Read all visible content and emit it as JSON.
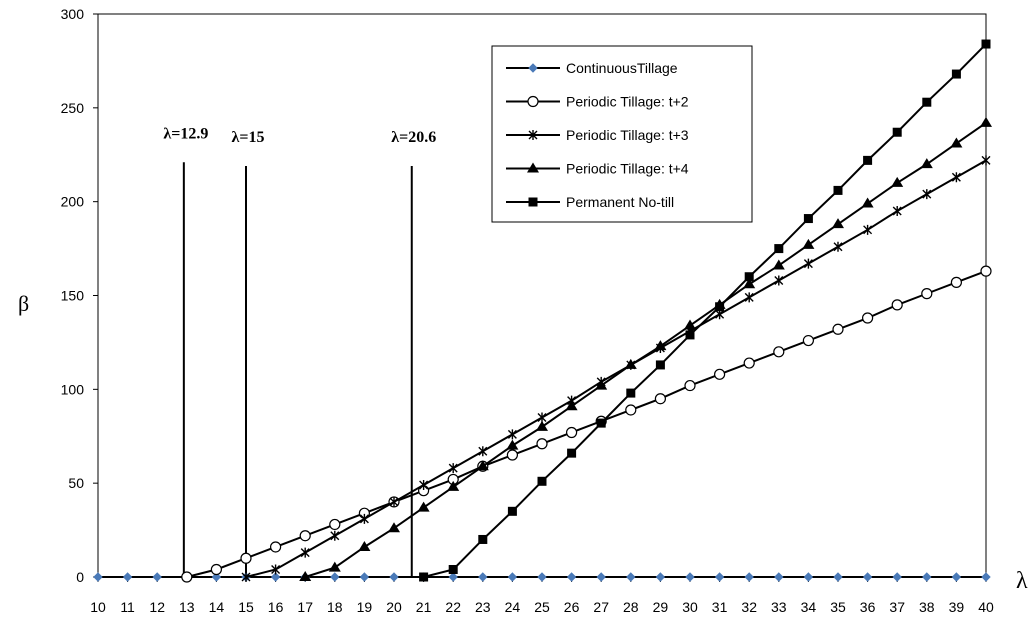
{
  "chart_data": {
    "type": "line",
    "title": "",
    "xlabel": "λ",
    "ylabel": "β",
    "xlim": [
      10,
      40
    ],
    "ylim": [
      0,
      300
    ],
    "x_ticks": [
      10,
      11,
      12,
      13,
      14,
      15,
      16,
      17,
      18,
      19,
      20,
      21,
      22,
      23,
      24,
      25,
      26,
      27,
      28,
      29,
      30,
      31,
      32,
      33,
      34,
      35,
      36,
      37,
      38,
      39,
      40
    ],
    "y_ticks": [
      0,
      50,
      100,
      150,
      200,
      250,
      300
    ],
    "grid": false,
    "legend_position": "top-right",
    "series": [
      {
        "name": "ContinuousTillage",
        "marker": "diamond",
        "color": "#4a7ab8",
        "x": [
          10,
          11,
          12,
          13,
          14,
          15,
          16,
          17,
          18,
          19,
          20,
          21,
          22,
          23,
          24,
          25,
          26,
          27,
          28,
          29,
          30,
          31,
          32,
          33,
          34,
          35,
          36,
          37,
          38,
          39,
          40
        ],
        "y": [
          0,
          0,
          0,
          0,
          0,
          0,
          0,
          0,
          0,
          0,
          0,
          0,
          0,
          0,
          0,
          0,
          0,
          0,
          0,
          0,
          0,
          0,
          0,
          0,
          0,
          0,
          0,
          0,
          0,
          0,
          0
        ]
      },
      {
        "name": "Periodic Tillage: t+2",
        "marker": "circle-open",
        "color": "#000000",
        "x": [
          13,
          14,
          15,
          16,
          17,
          18,
          19,
          20,
          21,
          22,
          23,
          24,
          25,
          26,
          27,
          28,
          29,
          30,
          31,
          32,
          33,
          34,
          35,
          36,
          37,
          38,
          39,
          40
        ],
        "y": [
          0,
          4,
          10,
          16,
          22,
          28,
          34,
          40,
          46,
          52,
          59,
          65,
          71,
          77,
          83,
          89,
          95,
          102,
          108,
          114,
          120,
          126,
          132,
          138,
          145,
          151,
          157,
          163
        ]
      },
      {
        "name": "Periodic Tillage: t+3",
        "marker": "asterisk",
        "color": "#000000",
        "x": [
          15,
          16,
          17,
          18,
          19,
          20,
          21,
          22,
          23,
          24,
          25,
          26,
          27,
          28,
          29,
          30,
          31,
          32,
          33,
          34,
          35,
          36,
          37,
          38,
          39,
          40
        ],
        "y": [
          0,
          4,
          13,
          22,
          31,
          40,
          49,
          58,
          67,
          76,
          85,
          94,
          104,
          113,
          122,
          131,
          140,
          149,
          158,
          167,
          176,
          185,
          195,
          204,
          213,
          222
        ]
      },
      {
        "name": "Periodic Tillage: t+4",
        "marker": "triangle",
        "color": "#000000",
        "x": [
          17,
          18,
          19,
          20,
          21,
          22,
          23,
          24,
          25,
          26,
          27,
          28,
          29,
          30,
          31,
          32,
          33,
          34,
          35,
          36,
          37,
          38,
          39,
          40
        ],
        "y": [
          0,
          5,
          16,
          26,
          37,
          48,
          59,
          70,
          80,
          91,
          102,
          113,
          123,
          134,
          145,
          156,
          166,
          177,
          188,
          199,
          210,
          220,
          231,
          242
        ]
      },
      {
        "name": "Permanent No-till",
        "marker": "square",
        "color": "#000000",
        "x": [
          21,
          22,
          23,
          24,
          25,
          26,
          27,
          28,
          29,
          30,
          31,
          32,
          33,
          34,
          35,
          36,
          37,
          38,
          39,
          40
        ],
        "y": [
          0,
          4,
          20,
          35,
          51,
          66,
          82,
          98,
          113,
          129,
          144,
          160,
          175,
          191,
          206,
          222,
          237,
          253,
          268,
          284
        ]
      }
    ],
    "vlines": [
      {
        "x": 12.9,
        "y_top": 221,
        "label": "λ=12.9"
      },
      {
        "x": 15,
        "y_top": 219,
        "label": "λ=15"
      },
      {
        "x": 20.6,
        "y_top": 219,
        "label": "λ=20.6"
      }
    ]
  }
}
